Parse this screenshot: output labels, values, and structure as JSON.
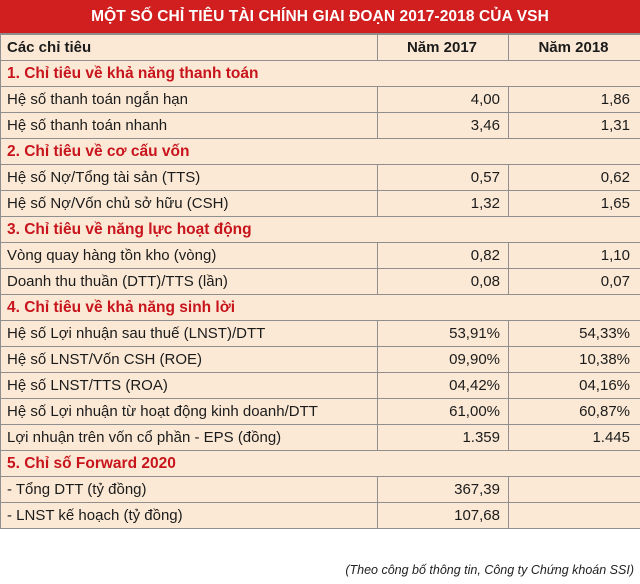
{
  "title": "MỘT SỐ CHỈ TIÊU TÀI CHÍNH GIAI ĐOẠN 2017-2018 CỦA VSH",
  "header": {
    "col_indicator": "Các chỉ tiêu",
    "col_2017": "Năm 2017",
    "col_2018": "Năm 2018"
  },
  "sections": [
    {
      "title": "1. Chỉ tiêu về khả năng thanh toán",
      "rows": [
        {
          "label": "Hệ số thanh toán ngắn hạn",
          "y2017": "4,00",
          "y2018": "1,86"
        },
        {
          "label": "Hệ số thanh toán nhanh",
          "y2017": "3,46",
          "y2018": "1,31"
        }
      ]
    },
    {
      "title": "2. Chỉ tiêu về cơ cấu vốn",
      "rows": [
        {
          "label": "Hệ số Nợ/Tổng tài sản (TTS)",
          "y2017": "0,57",
          "y2018": "0,62"
        },
        {
          "label": "Hệ số Nợ/Vốn chủ sở hữu (CSH)",
          "y2017": "1,32",
          "y2018": "1,65"
        }
      ]
    },
    {
      "title": "3. Chỉ tiêu về năng lực hoạt động",
      "rows": [
        {
          "label": "Vòng quay hàng tồn kho (vòng)",
          "y2017": "0,82",
          "y2018": "1,10"
        },
        {
          "label": "Doanh thu thuần (DTT)/TTS (lần)",
          "y2017": "0,08",
          "y2018": "0,07"
        }
      ]
    },
    {
      "title": "4. Chỉ tiêu về khả năng sinh lời",
      "rows": [
        {
          "label": "Hệ số Lợi nhuận sau thuế (LNST)/DTT",
          "y2017": "53,91%",
          "y2018": "54,33%"
        },
        {
          "label": "Hệ số LNST/Vốn CSH (ROE)",
          "y2017": "09,90%",
          "y2018": "10,38%"
        },
        {
          "label": "Hệ số LNST/TTS (ROA)",
          "y2017": "04,42%",
          "y2018": "04,16%"
        },
        {
          "label": "Hệ số Lợi nhuận từ hoạt động kinh doanh/DTT",
          "y2017": "61,00%",
          "y2018": "60,87%"
        },
        {
          "label": "Lợi nhuận trên vốn cổ phần - EPS (đồng)",
          "y2017": "1.359",
          "y2018": "1.445"
        }
      ]
    },
    {
      "title": "5. Chỉ số Forward 2020",
      "rows": [
        {
          "label": "- Tổng DTT (tỷ đồng)",
          "y2017": "367,39",
          "y2018": ""
        },
        {
          "label": "- LNST kế hoạch (tỷ đồng)",
          "y2017": "107,68",
          "y2018": ""
        }
      ]
    }
  ],
  "source": "(Theo công bố thông tin, Công ty Chứng khoán SSI)",
  "colors": {
    "title_bg": "#d11f1f",
    "section_text": "#c8141c",
    "table_bg": "#fbe9d5"
  }
}
